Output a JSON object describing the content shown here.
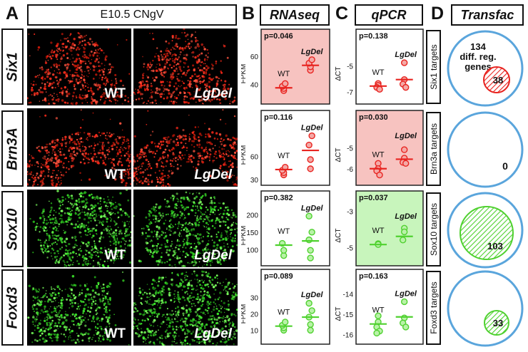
{
  "panel_letters": [
    "A",
    "B",
    "C",
    "D"
  ],
  "headers": {
    "microscopy": "E10.5 CNgV",
    "rnaseq": "RNAseq",
    "qpcr": "qPCR",
    "transfac": "Transfac"
  },
  "genes": [
    "Six1",
    "Brn3A",
    "Sox10",
    "Foxd3"
  ],
  "genotype_labels": {
    "wt": "WT",
    "mutant": "LgDel"
  },
  "colors": {
    "red": "#e8231f",
    "red_fill": "#f4a9a6",
    "green": "#4fd12f",
    "green_fill": "#b9f2a8",
    "circle": "#5aa5dc",
    "red_highlight": "#f7c3c0",
    "green_highlight": "#c8f5bc"
  },
  "rnaseq": {
    "ylabel": "FPKM",
    "rows": [
      {
        "p": "p=0.046",
        "highlight": "red",
        "ticks": [
          {
            "v": 40,
            "t": "40"
          },
          {
            "v": 60,
            "t": "60"
          }
        ],
        "ylim": [
          30,
          66
        ],
        "wt": [
          36,
          37.5,
          39,
          41
        ],
        "wt_mean": 38,
        "lgdel": [
          50.5,
          53,
          55.5,
          58
        ],
        "lgdel_mean": 54
      },
      {
        "p": "p=0.116",
        "highlight": "none",
        "ticks": [
          {
            "v": 30,
            "t": "30"
          },
          {
            "v": 60,
            "t": "60"
          }
        ],
        "ylim": [
          30,
          96
        ],
        "wt": [
          37,
          40,
          43,
          47
        ],
        "wt_mean": 44,
        "lgdel": [
          45,
          57,
          76,
          88
        ],
        "lgdel_mean": 69
      },
      {
        "p": "p=0.382",
        "highlight": "none",
        "ticks": [
          {
            "v": 100,
            "t": "100"
          },
          {
            "v": 150,
            "t": "150"
          },
          {
            "v": 200,
            "t": "200"
          }
        ],
        "ylim": [
          70,
          215
        ],
        "wt": [
          85,
          100,
          120
        ],
        "wt_mean": 115,
        "lgdel": [
          78,
          100,
          130,
          152,
          198
        ],
        "lgdel_mean": 127
      },
      {
        "p": "p=0.089",
        "highlight": "none",
        "ticks": [
          {
            "v": 10,
            "t": "10"
          },
          {
            "v": 20,
            "t": "20"
          },
          {
            "v": 30,
            "t": "30"
          }
        ],
        "ylim": [
          5,
          36
        ],
        "wt": [
          10.5,
          12,
          13.5,
          15.5
        ],
        "wt_mean": 13,
        "lgdel": [
          10.5,
          14,
          18.5,
          22.5,
          27
        ],
        "lgdel_mean": 18.5
      }
    ]
  },
  "qpcr": {
    "ylabel": "ΔCT",
    "rows": [
      {
        "p": "p=0.138",
        "highlight": "none",
        "ticks": [
          {
            "v": -5,
            "t": "-5"
          },
          {
            "v": -7,
            "t": "-7"
          }
        ],
        "ylim": [
          -7.5,
          -3.6
        ],
        "wt": [
          -6.3,
          -6.45,
          -6.6,
          -6.75
        ],
        "wt_mean": -6.5,
        "lgdel": [
          -4.7,
          -6.0,
          -6.35,
          -6.6
        ],
        "lgdel_mean": -6.0
      },
      {
        "p": "p=0.030",
        "highlight": "red",
        "ticks": [
          {
            "v": -5,
            "t": "-5"
          },
          {
            "v": -6,
            "t": "-6"
          }
        ],
        "ylim": [
          -6.5,
          -4.1
        ],
        "wt": [
          -5.7,
          -5.95,
          -6.05,
          -6.25
        ],
        "wt_mean": -5.95,
        "lgdel": [
          -5.05,
          -5.45,
          -5.65,
          -5.7
        ],
        "lgdel_mean": -5.5
      },
      {
        "p": "p=0.037",
        "highlight": "green",
        "ticks": [
          {
            "v": -3,
            "t": "-3"
          },
          {
            "v": -5,
            "t": "-5"
          }
        ],
        "ylim": [
          -5.7,
          -2.9
        ],
        "wt": [
          -4.75,
          -4.8
        ],
        "wt_mean": -4.8,
        "lgdel": [
          -3.9,
          -4.1,
          -4.55
        ],
        "lgdel_mean": -4.35
      },
      {
        "p": "p=0.163",
        "highlight": "none",
        "ticks": [
          {
            "v": -14,
            "t": "-14"
          },
          {
            "v": -15,
            "t": "-15"
          },
          {
            "v": -16,
            "t": "-16"
          }
        ],
        "ylim": [
          -16.2,
          -13.7
        ],
        "wt": [
          -15.05,
          -15.35,
          -15.6,
          -15.8,
          -15.9
        ],
        "wt_mean": -15.45,
        "lgdel": [
          -14.35,
          -15.15,
          -15.4,
          -15.6
        ],
        "lgdel_mean": -15.1
      }
    ]
  },
  "transfac": {
    "rows": [
      {
        "label": "Six1 targets",
        "count": "38",
        "outer_label": [
          "134",
          "diff. reg.",
          "genes"
        ],
        "fill": "red",
        "r": 18
      },
      {
        "label": "Brn3a targets",
        "count": "0",
        "outer_label": [],
        "fill": "none",
        "r": 0
      },
      {
        "label": "Sox10 targets",
        "count": "103",
        "outer_label": [],
        "fill": "green",
        "r": 37
      },
      {
        "label": "Foxd3 targets",
        "count": "33",
        "outer_label": [],
        "fill": "green",
        "r": 17
      }
    ]
  }
}
